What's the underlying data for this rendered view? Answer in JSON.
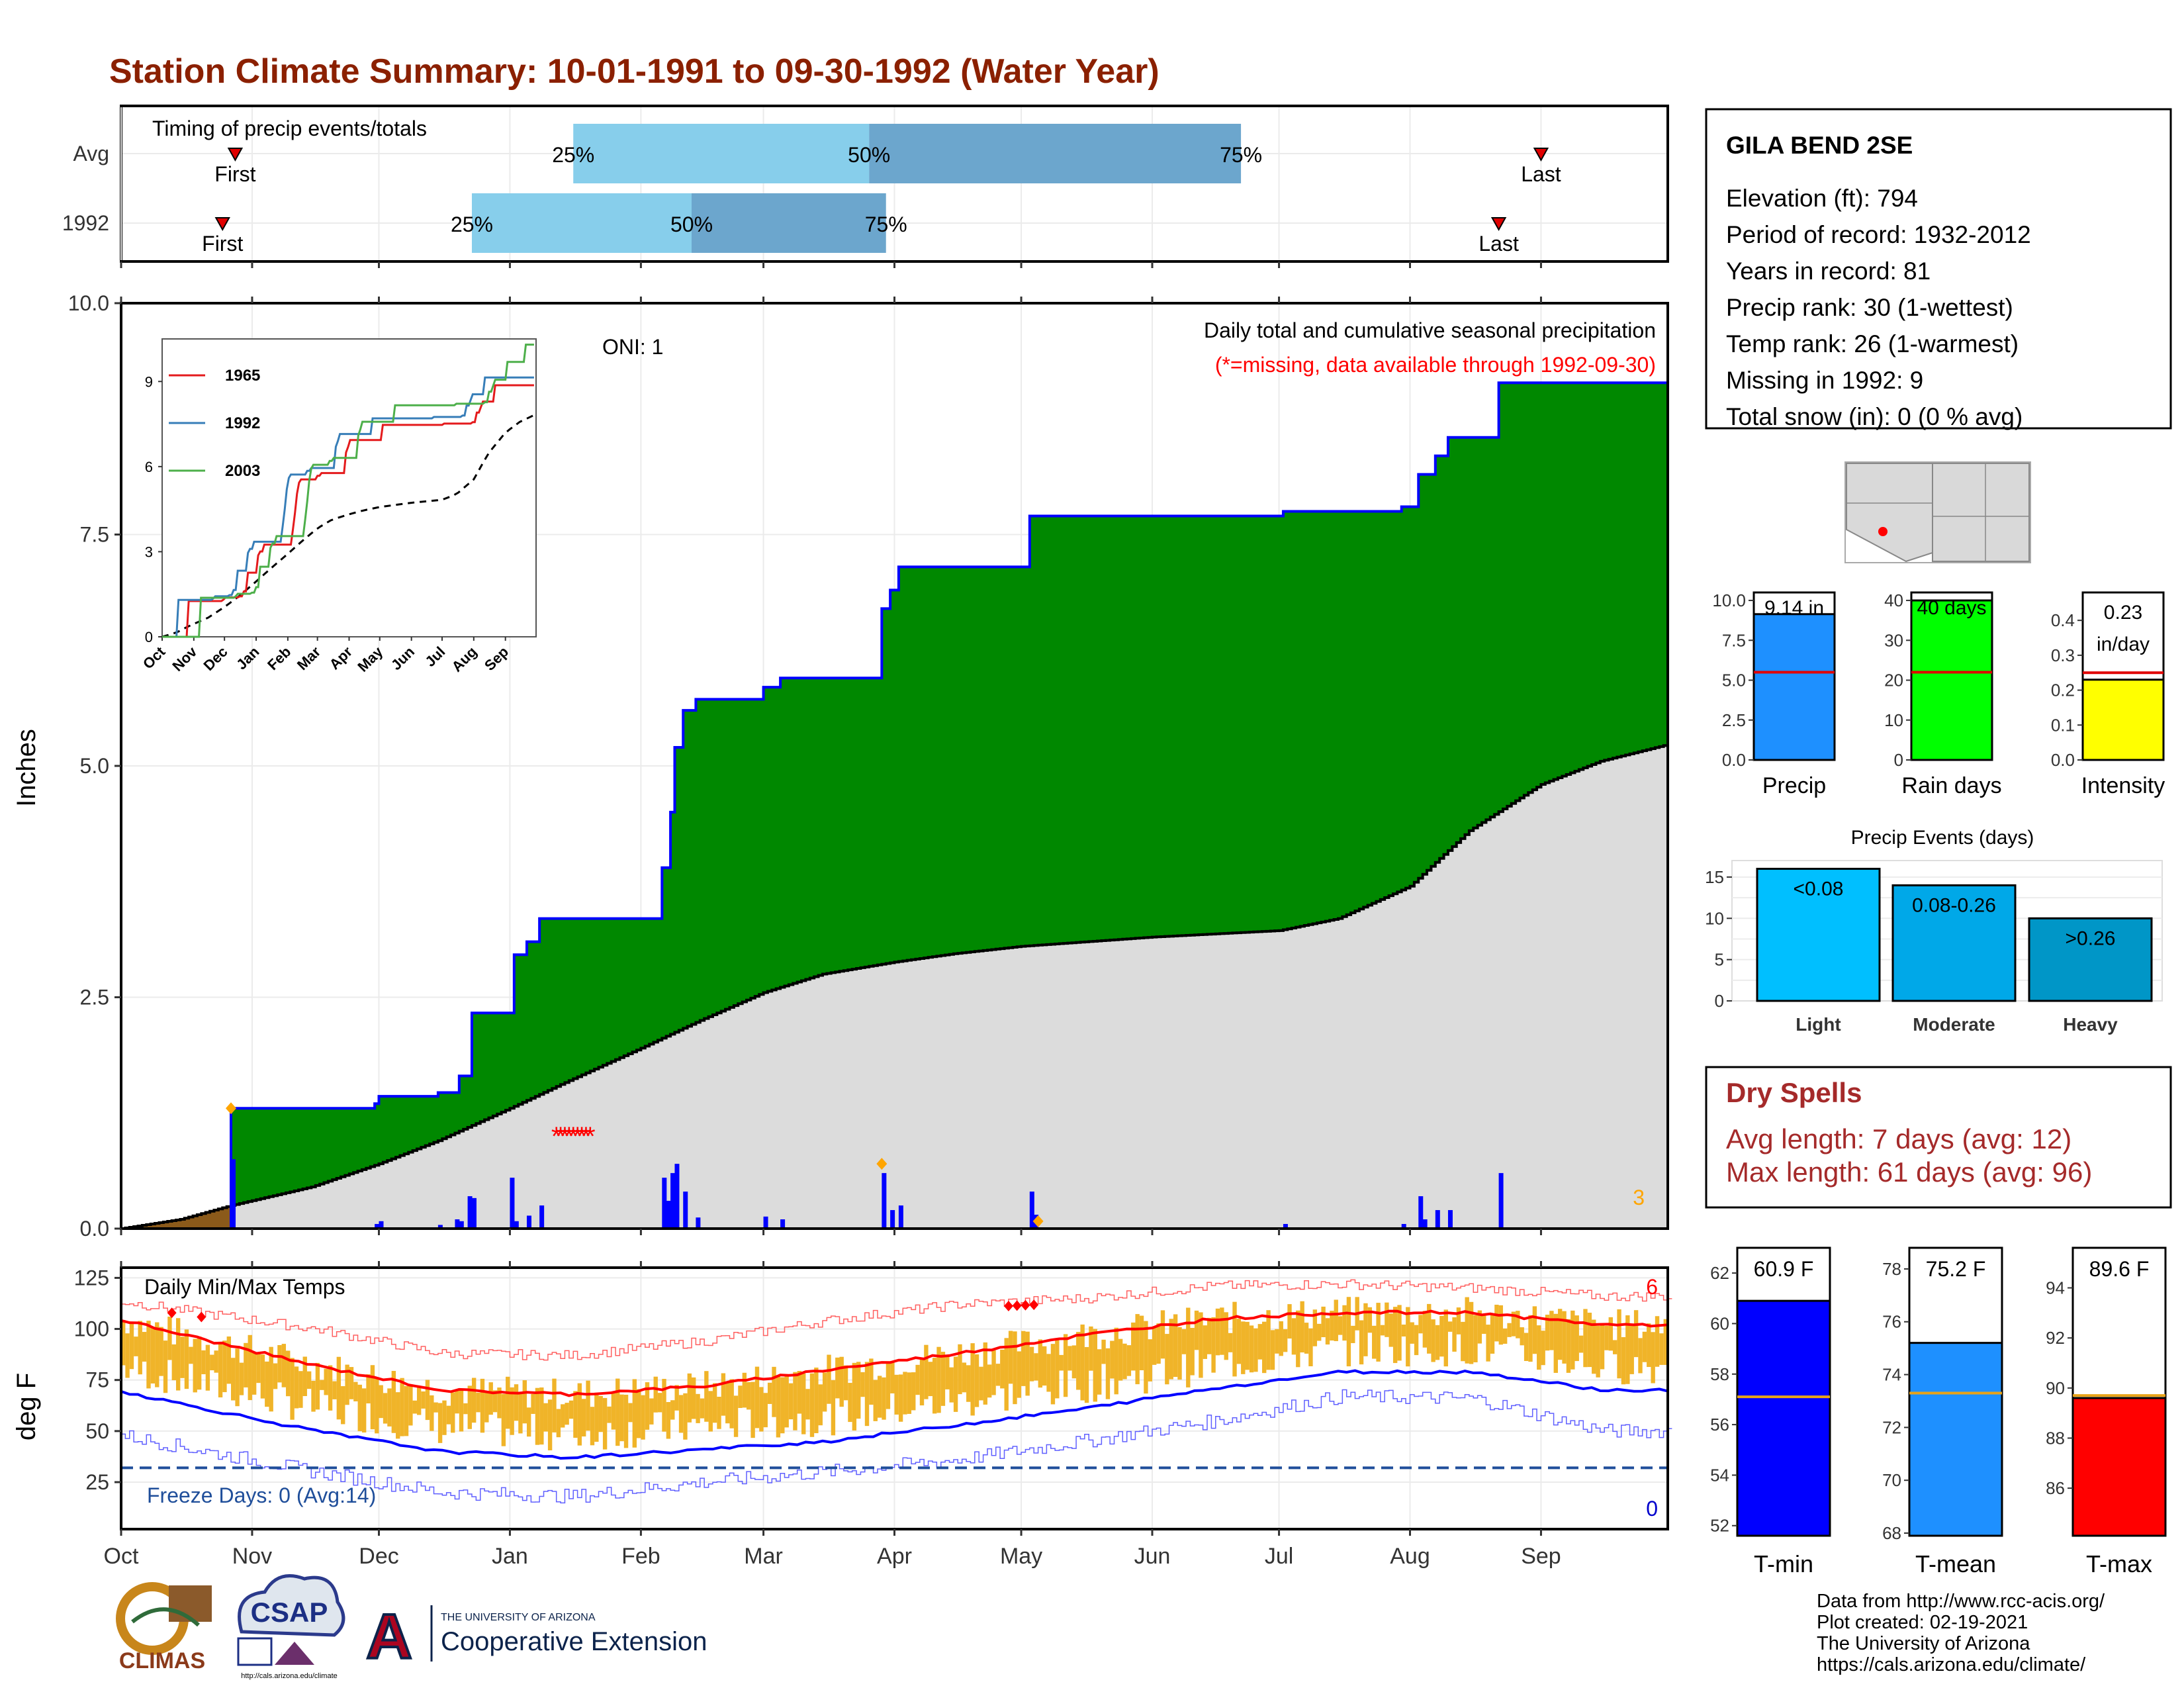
{
  "title": "Station Climate Summary: 10-01-1991 to 09-30-1992 (Water Year)",
  "timing": {
    "title": "Timing of precip events/totals",
    "rows": [
      {
        "label": "Avg",
        "first_label": "First",
        "last_label": "Last",
        "first_date": "1991-10-28",
        "last_date": "1992-09-01",
        "p25_date": "1992-01-16",
        "p50_date": "1992-03-26",
        "p75_date": "1992-06-22",
        "p25_label": "25%",
        "p50_label": "50%",
        "p75_label": "75%"
      },
      {
        "label": "1992",
        "first_label": "First",
        "last_label": "Last",
        "first_date": "1991-10-25",
        "last_date": "1992-08-22",
        "p25_date": "1991-12-23",
        "p50_date": "1992-02-13",
        "p75_date": "1992-03-30",
        "p25_label": "25%",
        "p50_label": "50%",
        "p75_label": "75%"
      }
    ]
  },
  "station": {
    "name": "GILA BEND 2SE",
    "lines": [
      "Elevation (ft): 794",
      "Period of record: 1932-2012",
      "Years in record: 81",
      "Precip rank: 30 (1-wettest)",
      "Temp rank: 26 (1-warmest)",
      "Missing in 1992: 9",
      "Total snow (in): 0 (0 % avg)"
    ]
  },
  "main_chart": {
    "ylabel": "Inches",
    "oni": "ONI: 1",
    "legend_line1": "Daily total and cumulative seasonal precipitation",
    "legend_line2": "(*=missing, data available through 1992-09-30)",
    "count_label": "3"
  },
  "temp_chart": {
    "ylabel": "deg F",
    "title": "Daily Min/Max Temps",
    "freeze_label": "Freeze Days: 0 (Avg:14)",
    "high_count": "6",
    "low_count": "0"
  },
  "months": [
    "Oct",
    "Nov",
    "Dec",
    "Jan",
    "Feb",
    "Mar",
    "Apr",
    "May",
    "Jun",
    "Jul",
    "Aug",
    "Sep"
  ],
  "mini_bars": [
    {
      "label": "Precip",
      "value_text": "9.14 in",
      "value": 9.14,
      "avg": 5.5,
      "ymax": 10.5,
      "ticks": [
        "0.0",
        "2.5",
        "5.0",
        "7.5",
        "10.0"
      ],
      "tickvals": [
        0,
        2.5,
        5,
        7.5,
        10
      ],
      "color": "#1e90ff"
    },
    {
      "label": "Rain days",
      "value_text": "40 days",
      "value": 40,
      "avg": 22,
      "ymax": 42,
      "ticks": [
        "0",
        "10",
        "20",
        "30",
        "40"
      ],
      "tickvals": [
        0,
        10,
        20,
        30,
        40
      ],
      "color": "#00ff00"
    },
    {
      "label": "Intensity",
      "value_text": "0.23",
      "value_text2": "in/day",
      "value": 0.23,
      "avg": 0.25,
      "ymax": 0.48,
      "ticks": [
        "0.0",
        "0.1",
        "0.2",
        "0.3",
        "0.4"
      ],
      "tickvals": [
        0,
        0.1,
        0.2,
        0.3,
        0.4
      ],
      "color": "#ffff00"
    }
  ],
  "events": {
    "title": "Precip Events (days)",
    "ticks": [
      "0",
      "5",
      "10",
      "15"
    ],
    "bars": [
      {
        "label": "Light",
        "text": "<0.08",
        "value": 16,
        "color": "#00bfff"
      },
      {
        "label": "Moderate",
        "text": "0.08-0.26",
        "value": 14,
        "color": "#00a8e8"
      },
      {
        "label": "Heavy",
        "text": ">0.26",
        "value": 10,
        "color": "#0096c7"
      }
    ]
  },
  "dry_spells": {
    "title": "Dry Spells",
    "line1": "Avg length: 7 days (avg: 12)",
    "line2": "Max length: 61 days (avg: 96)"
  },
  "temp_bars": [
    {
      "label": "T-min",
      "value_text": "60.9 F",
      "value": 60.9,
      "avg": 57.1,
      "ymin": 51.6,
      "ymax": 63.0,
      "ticks": [
        "52",
        "54",
        "56",
        "58",
        "60",
        "62"
      ],
      "tickvals": [
        52,
        54,
        56,
        58,
        60,
        62
      ],
      "color": "#0000ff"
    },
    {
      "label": "T-mean",
      "value_text": "75.2 F",
      "value": 75.2,
      "avg": 73.3,
      "ymin": 67.9,
      "ymax": 78.8,
      "ticks": [
        "68",
        "70",
        "72",
        "74",
        "76",
        "78"
      ],
      "tickvals": [
        68,
        70,
        72,
        74,
        76,
        78
      ],
      "color": "#1e90ff"
    },
    {
      "label": "T-max",
      "value_text": "89.6 F",
      "value": 89.6,
      "avg": 89.7,
      "ymin": 84.1,
      "ymax": 95.6,
      "ticks": [
        "86",
        "88",
        "90",
        "92",
        "94"
      ],
      "tickvals": [
        86,
        88,
        90,
        92,
        94
      ],
      "color": "#ff0000"
    }
  ],
  "credits": [
    "Data from http://www.rcc-acis.org/",
    "Plot created: 02-19-2021",
    "The University of Arizona",
    "https://cals.arizona.edu/climate/"
  ],
  "logos": {
    "climas": "CLIMAS",
    "csap": "CSAP",
    "csap_url": "http://cals.arizona.edu/climate",
    "ua_line1": "THE UNIVERSITY OF ARIZONA",
    "ua_line2": "Cooperative Extension",
    "ua_letter": "A"
  },
  "inset": {
    "years": [
      "1965",
      "1992",
      "2003"
    ],
    "colors": [
      "#e41a1c",
      "#377eb8",
      "#4daf4a"
    ],
    "yticks": [
      "0",
      "3",
      "6",
      "9"
    ],
    "months": [
      "Oct",
      "Nov",
      "Dec",
      "Jan",
      "Feb",
      "Mar",
      "Apr",
      "May",
      "Jun",
      "Jul",
      "Aug",
      "Sep"
    ]
  },
  "chart_data": [
    {
      "type": "area",
      "title": "Daily total and cumulative seasonal precipitation",
      "ylabel": "Inches",
      "ylim": [
        0,
        10
      ],
      "yticks": [
        0,
        2.5,
        5,
        7.5,
        10
      ],
      "cumulative_1992": [
        [
          "1991-10-01",
          0
        ],
        [
          "1991-10-26",
          0
        ],
        [
          "1991-10-27",
          1.3
        ],
        [
          "1991-11-30",
          1.35
        ],
        [
          "1991-12-01",
          1.43
        ],
        [
          "1991-12-15",
          1.47
        ],
        [
          "1991-12-20",
          1.65
        ],
        [
          "1991-12-23",
          2.33
        ],
        [
          "1991-12-30",
          2.33
        ],
        [
          "1992-01-02",
          2.96
        ],
        [
          "1992-01-05",
          3.1
        ],
        [
          "1992-01-08",
          3.35
        ],
        [
          "1992-02-05",
          3.35
        ],
        [
          "1992-02-06",
          3.9
        ],
        [
          "1992-02-08",
          4.5
        ],
        [
          "1992-02-09",
          5.2
        ],
        [
          "1992-02-11",
          5.6
        ],
        [
          "1992-02-14",
          5.72
        ],
        [
          "1992-03-01",
          5.85
        ],
        [
          "1992-03-05",
          5.95
        ],
        [
          "1992-03-28",
          5.95
        ],
        [
          "1992-03-29",
          6.7
        ],
        [
          "1992-03-31",
          6.9
        ],
        [
          "1992-04-02",
          7.15
        ],
        [
          "1992-05-02",
          7.15
        ],
        [
          "1992-05-03",
          7.7
        ],
        [
          "1992-07-01",
          7.7
        ],
        [
          "1992-07-02",
          7.75
        ],
        [
          "1992-07-30",
          7.8
        ],
        [
          "1992-08-03",
          8.15
        ],
        [
          "1992-08-07",
          8.35
        ],
        [
          "1992-08-10",
          8.55
        ],
        [
          "1992-08-21",
          8.55
        ],
        [
          "1992-08-22",
          9.14
        ],
        [
          "1992-09-30",
          9.14
        ]
      ],
      "cumulative_avg": [
        [
          "1991-10-01",
          0
        ],
        [
          "1991-10-15",
          0.1
        ],
        [
          "1991-10-27",
          0.25
        ],
        [
          "1991-11-15",
          0.45
        ],
        [
          "1991-12-01",
          0.7
        ],
        [
          "1991-12-15",
          0.95
        ],
        [
          "1992-01-01",
          1.3
        ],
        [
          "1992-01-15",
          1.6
        ],
        [
          "1992-02-01",
          1.95
        ],
        [
          "1992-02-15",
          2.25
        ],
        [
          "1992-03-01",
          2.55
        ],
        [
          "1992-03-15",
          2.75
        ],
        [
          "1992-04-01",
          2.88
        ],
        [
          "1992-04-15",
          2.97
        ],
        [
          "1992-05-01",
          3.05
        ],
        [
          "1992-06-01",
          3.15
        ],
        [
          "1992-07-01",
          3.22
        ],
        [
          "1992-07-15",
          3.35
        ],
        [
          "1992-08-01",
          3.7
        ],
        [
          "1992-08-15",
          4.3
        ],
        [
          "1992-09-01",
          4.8
        ],
        [
          "1992-09-15",
          5.05
        ],
        [
          "1992-09-30",
          5.22
        ]
      ],
      "daily_1992": [
        [
          "1991-10-27",
          1.3
        ],
        [
          "1991-11-30",
          0.05
        ],
        [
          "1991-12-01",
          0.08
        ],
        [
          "1991-12-15",
          0.04
        ],
        [
          "1991-12-19",
          0.1
        ],
        [
          "1991-12-20",
          0.08
        ],
        [
          "1991-12-22",
          0.35
        ],
        [
          "1991-12-23",
          0.33
        ],
        [
          "1992-01-01",
          0.55
        ],
        [
          "1992-01-02",
          0.08
        ],
        [
          "1992-01-05",
          0.14
        ],
        [
          "1992-01-08",
          0.25
        ],
        [
          "1992-02-06",
          0.55
        ],
        [
          "1992-02-07",
          0.3
        ],
        [
          "1992-02-08",
          0.6
        ],
        [
          "1992-02-09",
          0.7
        ],
        [
          "1992-02-11",
          0.4
        ],
        [
          "1992-02-14",
          0.12
        ],
        [
          "1992-03-01",
          0.13
        ],
        [
          "1992-03-05",
          0.1
        ],
        [
          "1992-03-29",
          0.6
        ],
        [
          "1992-03-31",
          0.2
        ],
        [
          "1992-04-02",
          0.25
        ],
        [
          "1992-05-03",
          0.4
        ],
        [
          "1992-05-04",
          0.15
        ],
        [
          "1992-07-02",
          0.05
        ],
        [
          "1992-07-30",
          0.05
        ],
        [
          "1992-08-03",
          0.35
        ],
        [
          "1992-08-04",
          0.1
        ],
        [
          "1992-08-07",
          0.2
        ],
        [
          "1992-08-10",
          0.2
        ],
        [
          "1992-08-22",
          0.6
        ]
      ],
      "missing_dates": [
        "1992-01-12",
        "1992-01-13",
        "1992-01-14",
        "1992-01-15",
        "1992-01-16",
        "1992-01-17",
        "1992-01-18",
        "1992-01-19",
        "1992-01-20"
      ],
      "record_markers": [
        "1991-10-27",
        "1992-03-29",
        "1992-05-05"
      ]
    },
    {
      "type": "line",
      "title": "Daily Min/Max Temps",
      "ylabel": "deg F",
      "ylim": [
        2,
        130
      ],
      "yticks": [
        25,
        50,
        75,
        100,
        125
      ],
      "freeze_line": 32,
      "avg_max_monthly": [
        [
          10,
          97
        ],
        [
          11,
          82
        ],
        [
          12,
          70
        ],
        [
          1,
          68
        ],
        [
          2,
          72
        ],
        [
          3,
          80
        ],
        [
          4,
          88
        ],
        [
          5,
          97
        ],
        [
          6,
          105
        ],
        [
          7,
          108
        ],
        [
          8,
          108
        ],
        [
          9,
          102
        ]
      ],
      "avg_min_monthly": [
        [
          10,
          63
        ],
        [
          11,
          50
        ],
        [
          12,
          40
        ],
        [
          1,
          37
        ],
        [
          2,
          41
        ],
        [
          3,
          45
        ],
        [
          4,
          53
        ],
        [
          5,
          61
        ],
        [
          6,
          71
        ],
        [
          7,
          79
        ],
        [
          8,
          79
        ],
        [
          9,
          70
        ]
      ],
      "record_max_monthly": [
        [
          10,
          109
        ],
        [
          11,
          100
        ],
        [
          12,
          88
        ],
        [
          1,
          87
        ],
        [
          2,
          94
        ],
        [
          3,
          104
        ],
        [
          4,
          112
        ],
        [
          5,
          115
        ],
        [
          6,
          121
        ],
        [
          7,
          122
        ],
        [
          8,
          120
        ],
        [
          9,
          116
        ]
      ],
      "record_min_monthly": [
        [
          10,
          42
        ],
        [
          11,
          30
        ],
        [
          12,
          20
        ],
        [
          1,
          18
        ],
        [
          2,
          25
        ],
        [
          3,
          30
        ],
        [
          4,
          36
        ],
        [
          5,
          45
        ],
        [
          6,
          55
        ],
        [
          7,
          67
        ],
        [
          8,
          66
        ],
        [
          9,
          50
        ]
      ]
    }
  ]
}
